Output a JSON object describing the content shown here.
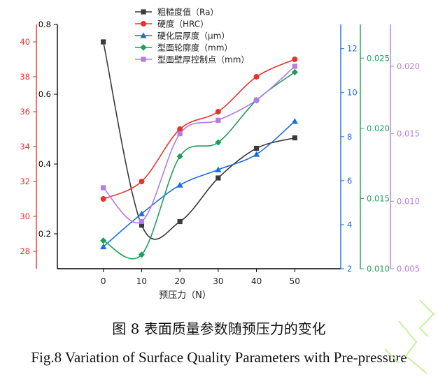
{
  "chart_data": {
    "type": "line",
    "x": [
      0,
      10,
      20,
      30,
      40,
      50
    ],
    "xlabel": "预压力（N）",
    "xlim": [
      -12,
      62
    ],
    "x_ticks": [
      "0",
      "10",
      "20",
      "30",
      "40",
      "50"
    ],
    "axes": [
      {
        "id": "ra",
        "color": "#000000",
        "range": [
          0.1,
          0.8
        ],
        "ticks": [
          0.2,
          0.4,
          0.6,
          0.8
        ],
        "tick_labels": [
          "0.2",
          "0.4",
          "0.6",
          "0.8"
        ]
      },
      {
        "id": "hrc",
        "color": "#e8322e",
        "range": [
          27,
          41
        ],
        "ticks": [
          28,
          30,
          32,
          34,
          36,
          38,
          40
        ],
        "tick_labels": [
          "28",
          "30",
          "32",
          "34",
          "36",
          "38",
          "40"
        ]
      },
      {
        "id": "dep",
        "color": "#1a6ee0",
        "range": [
          2,
          13.1
        ],
        "ticks": [
          2,
          4,
          6,
          8,
          10,
          12
        ],
        "tick_labels": [
          "2",
          "4",
          "6",
          "8",
          "10",
          "12"
        ]
      },
      {
        "id": "cont",
        "color": "#1f9e5a",
        "range": [
          0.01,
          0.0274
        ],
        "ticks": [
          0.01,
          0.015,
          0.02,
          0.025
        ],
        "tick_labels": [
          "0.010",
          "0.015",
          "0.020",
          "0.025"
        ]
      },
      {
        "id": "wall",
        "color": "#b57be6",
        "range": [
          0.005,
          0.0231
        ],
        "ticks": [
          0.005,
          0.01,
          0.015,
          0.02
        ],
        "tick_labels": [
          "0.005",
          "0.010",
          "0.015",
          "0.020"
        ]
      }
    ],
    "series": [
      {
        "name": "粗糙度值（Ra）",
        "axis": "ra",
        "color": "#3a3a3a",
        "marker": "square",
        "values": [
          0.75,
          0.225,
          0.235,
          0.36,
          0.445,
          0.475
        ]
      },
      {
        "name": "硬度（HRC）",
        "axis": "hrc",
        "color": "#e8322e",
        "marker": "circle",
        "values": [
          31.0,
          32.0,
          35.0,
          36.0,
          38.0,
          39.0
        ]
      },
      {
        "name": "硬化层厚度（μm）",
        "axis": "dep",
        "color": "#1a6ee0",
        "marker": "triangle",
        "values": [
          3.0,
          4.5,
          5.8,
          6.5,
          7.2,
          8.7
        ]
      },
      {
        "name": "型面轮廓度（mm）",
        "axis": "cont",
        "color": "#1f9e5a",
        "marker": "diamond",
        "values": [
          0.012,
          0.011,
          0.018,
          0.019,
          0.022,
          0.024
        ]
      },
      {
        "name": "型面壁厚控制点（mm）",
        "axis": "wall",
        "color": "#b57be6",
        "marker": "square",
        "values": [
          0.011,
          0.0085,
          0.015,
          0.016,
          0.0175,
          0.02
        ]
      }
    ]
  },
  "captions": {
    "cn": "图 8  表面质量参数随预压力的变化",
    "en": "Fig.8 Variation of Surface Quality Parameters with Pre-pressure"
  }
}
